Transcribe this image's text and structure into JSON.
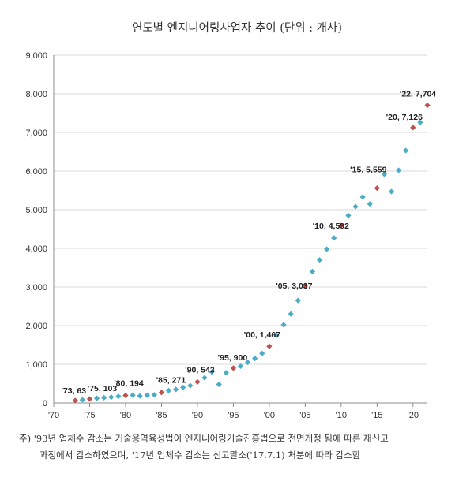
{
  "chart_data": {
    "type": "scatter",
    "title": "연도별 엔지니어링사업자 추이 (단위 : 개사)",
    "xlabel": "",
    "ylabel": "",
    "x_range": [
      1970,
      2022
    ],
    "ylim": [
      0,
      9000
    ],
    "y_ticks": [
      "0",
      "1,000",
      "2,000",
      "3,000",
      "4,000",
      "5,000",
      "6,000",
      "7,000",
      "8,000",
      "9,000"
    ],
    "x_ticks": [
      "'70",
      "'75",
      "'80",
      "'85",
      "'90",
      "'95",
      "'00",
      "'05",
      "'10",
      "'15",
      "'20"
    ],
    "grid": "horizontal",
    "colors": {
      "series": "#4bacc6",
      "highlight": "#c0504d"
    },
    "points": [
      {
        "x": 1973,
        "y": 63
      },
      {
        "x": 1974,
        "y": 80
      },
      {
        "x": 1975,
        "y": 103
      },
      {
        "x": 1976,
        "y": 120
      },
      {
        "x": 1977,
        "y": 135
      },
      {
        "x": 1978,
        "y": 150
      },
      {
        "x": 1979,
        "y": 170
      },
      {
        "x": 1980,
        "y": 194
      },
      {
        "x": 1981,
        "y": 200
      },
      {
        "x": 1982,
        "y": 180
      },
      {
        "x": 1983,
        "y": 200
      },
      {
        "x": 1984,
        "y": 210
      },
      {
        "x": 1985,
        "y": 271
      },
      {
        "x": 1986,
        "y": 320
      },
      {
        "x": 1987,
        "y": 350
      },
      {
        "x": 1988,
        "y": 400
      },
      {
        "x": 1989,
        "y": 450
      },
      {
        "x": 1990,
        "y": 543
      },
      {
        "x": 1991,
        "y": 650
      },
      {
        "x": 1992,
        "y": 800
      },
      {
        "x": 1993,
        "y": 480
      },
      {
        "x": 1994,
        "y": 780
      },
      {
        "x": 1995,
        "y": 900
      },
      {
        "x": 1996,
        "y": 950
      },
      {
        "x": 1997,
        "y": 1050
      },
      {
        "x": 1998,
        "y": 1150
      },
      {
        "x": 1999,
        "y": 1280
      },
      {
        "x": 2000,
        "y": 1467
      },
      {
        "x": 2001,
        "y": 1750
      },
      {
        "x": 2002,
        "y": 2020
      },
      {
        "x": 2003,
        "y": 2300
      },
      {
        "x": 2004,
        "y": 2650
      },
      {
        "x": 2005,
        "y": 3037
      },
      {
        "x": 2006,
        "y": 3400
      },
      {
        "x": 2007,
        "y": 3700
      },
      {
        "x": 2008,
        "y": 3980
      },
      {
        "x": 2009,
        "y": 4270
      },
      {
        "x": 2010,
        "y": 4592
      },
      {
        "x": 2011,
        "y": 4850
      },
      {
        "x": 2012,
        "y": 5080
      },
      {
        "x": 2013,
        "y": 5330
      },
      {
        "x": 2014,
        "y": 5150
      },
      {
        "x": 2015,
        "y": 5559
      },
      {
        "x": 2016,
        "y": 5920
      },
      {
        "x": 2017,
        "y": 5470
      },
      {
        "x": 2018,
        "y": 6020
      },
      {
        "x": 2019,
        "y": 6530
      },
      {
        "x": 2020,
        "y": 7126
      },
      {
        "x": 2021,
        "y": 7260
      },
      {
        "x": 2022,
        "y": 7704
      }
    ],
    "highlighted": [
      {
        "x": 1973,
        "y": 63,
        "label": "'73, 63"
      },
      {
        "x": 1975,
        "y": 103,
        "label": "'75, 103"
      },
      {
        "x": 1980,
        "y": 194,
        "label": "'80, 194"
      },
      {
        "x": 1985,
        "y": 271,
        "label": "'85, 271"
      },
      {
        "x": 1990,
        "y": 543,
        "label": "'90, 543"
      },
      {
        "x": 1995,
        "y": 900,
        "label": "'95, 900"
      },
      {
        "x": 2000,
        "y": 1467,
        "label": "'00, 1,467"
      },
      {
        "x": 2005,
        "y": 3037,
        "label": "'05, 3,037"
      },
      {
        "x": 2010,
        "y": 4592,
        "label": "'10, 4,592"
      },
      {
        "x": 2015,
        "y": 5559,
        "label": "'15, 5,559"
      },
      {
        "x": 2020,
        "y": 7126,
        "label": "'20, 7,126"
      },
      {
        "x": 2022,
        "y": 7704,
        "label": "'22, 7,704"
      }
    ],
    "footnote": {
      "line1": "주) '93년 업체수 감소는 기술용역육성법이 엔지니어링기술진흥법으로 전면개정 됨에 따른 재신고",
      "line2": "과정에서 감소하였으며, '17년 업체수 감소는 신고말소('17.7.1) 처분에 따라 감소함"
    }
  }
}
